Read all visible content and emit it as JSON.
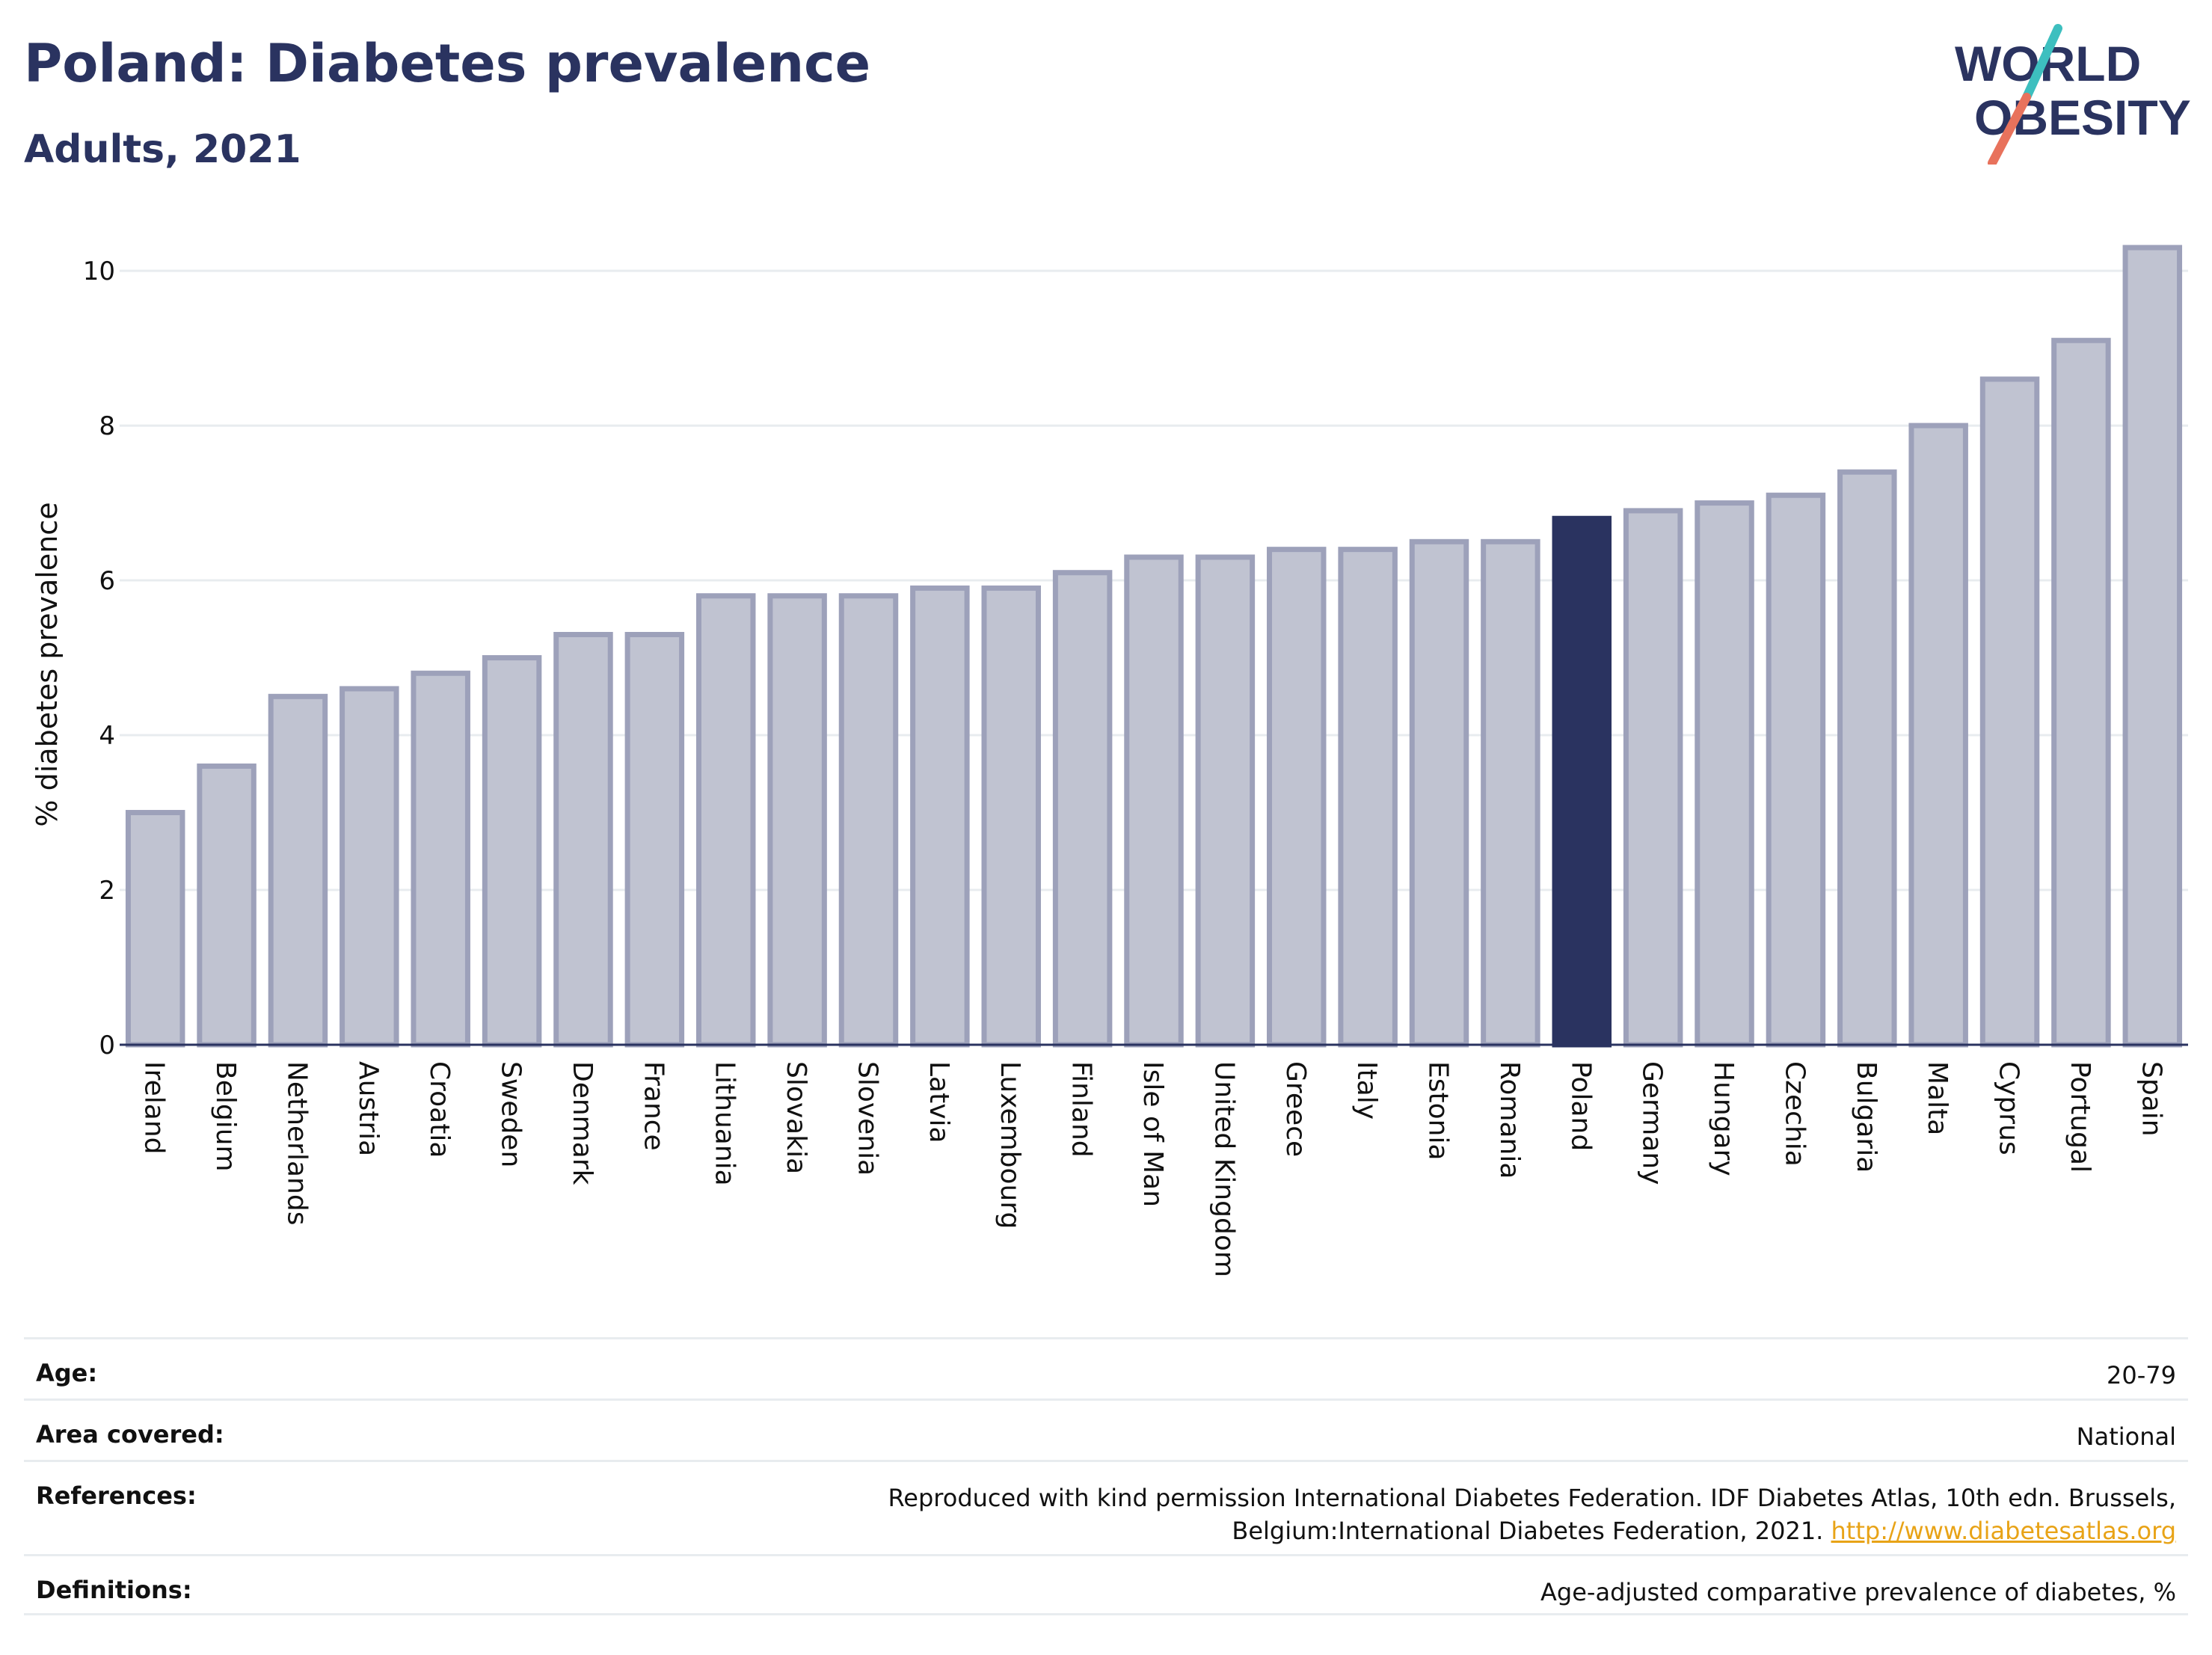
{
  "header": {
    "title": "Poland: Diabetes prevalence",
    "subtitle": "Adults, 2021"
  },
  "logo": {
    "line1": "WORLD",
    "line2": "OBESITY"
  },
  "chart_data": {
    "type": "bar",
    "ylabel": "% diabetes prevalence",
    "ylim": [
      0,
      10.6
    ],
    "yticks": [
      0,
      2,
      4,
      6,
      8,
      10
    ],
    "grid": true,
    "highlight": "Poland",
    "colors": {
      "bar": "#c0c3d1",
      "bar_border": "#9da1ba",
      "highlight": "#2a3360",
      "grid": "#e8ecef"
    },
    "categories": [
      "Ireland",
      "Belgium",
      "Netherlands",
      "Austria",
      "Croatia",
      "Sweden",
      "Denmark",
      "France",
      "Lithuania",
      "Slovakia",
      "Slovenia",
      "Latvia",
      "Luxembourg",
      "Finland",
      "Isle of Man",
      "United Kingdom",
      "Greece",
      "Italy",
      "Estonia",
      "Romania",
      "Poland",
      "Germany",
      "Hungary",
      "Czechia",
      "Bulgaria",
      "Malta",
      "Cyprus",
      "Portugal",
      "Spain"
    ],
    "values": [
      3.0,
      3.6,
      4.5,
      4.6,
      4.8,
      5.0,
      5.3,
      5.3,
      5.8,
      5.8,
      5.8,
      5.9,
      5.9,
      6.1,
      6.3,
      6.3,
      6.4,
      6.4,
      6.5,
      6.5,
      6.8,
      6.9,
      7.0,
      7.1,
      7.4,
      8.0,
      8.6,
      9.1,
      10.3
    ]
  },
  "meta": {
    "age_label": "Age:",
    "age_value": "20-79",
    "area_label": "Area covered:",
    "area_value": "National",
    "references_label": "References:",
    "references_value": "Reproduced with kind permission International Diabetes Federation.  IDF Diabetes Atlas, 10th edn. Brussels, Belgium:International Diabetes Federation, 2021.",
    "references_link": "http://www.diabetesatlas.org",
    "definitions_label": "Definitions:",
    "definitions_value": "Age-adjusted comparative prevalence of diabetes, %"
  }
}
